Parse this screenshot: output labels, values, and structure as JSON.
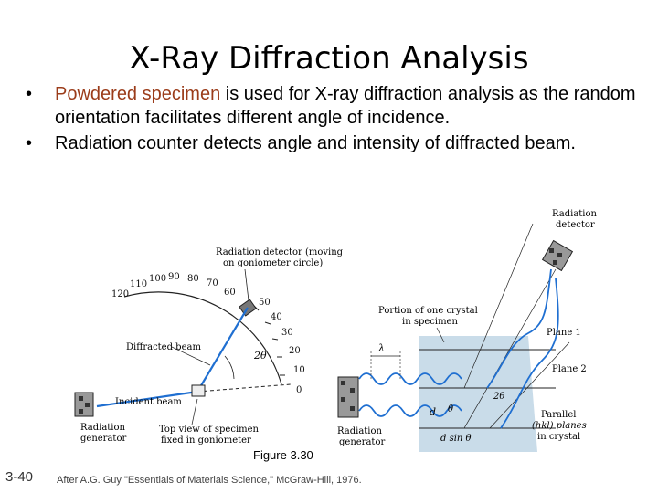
{
  "title": "X-Ray Diffraction Analysis",
  "bullets": [
    {
      "highlight": "Powdered specimen",
      "text": " is used for X-ray diffraction analysis as the random orientation facilitates different angle of incidence."
    },
    {
      "highlight": "",
      "text": "Radiation counter detects angle and intensity of diffracted beam."
    }
  ],
  "figure": {
    "left": {
      "detector_label_1": "Radiation detector (moving",
      "detector_label_2": "on goniometer circle)",
      "diffracted_beam": "Diffracted beam",
      "incident_beam": "Incident beam",
      "generator_1": "Radiation",
      "generator_2": "generator",
      "specimen_1": "Top view of specimen",
      "specimen_2": "fixed in goniometer",
      "two_theta": "2θ",
      "scale_labels": [
        "120",
        "110",
        "100",
        "90",
        "80",
        "70",
        "60",
        "50",
        "40",
        "30",
        "20",
        "10",
        "0"
      ]
    },
    "right": {
      "detector_1": "Radiation",
      "detector_2": "detector",
      "crystal_1": "Portion of one crystal",
      "crystal_2": "in specimen",
      "plane1": "Plane 1",
      "plane2": "Plane 2",
      "lambda": "λ",
      "two_theta": "2θ",
      "d": "d",
      "theta": "θ",
      "dsin": "d sin θ",
      "parallel_1": "Parallel",
      "parallel_2": "(hkl) planes",
      "parallel_3": "in crystal",
      "generator_1": "Radiation",
      "generator_2": "generator"
    }
  },
  "caption_word": "Figure",
  "caption_num": "3.30",
  "slide_number": "3-40",
  "credit": "After A.G. Guy \"Essentials of Materials Science,\" McGraw-Hill, 1976.",
  "colors": {
    "highlight": "#9b3c1a",
    "beam_blue": "#1f6fd1",
    "crystal": "#c9dce9"
  }
}
